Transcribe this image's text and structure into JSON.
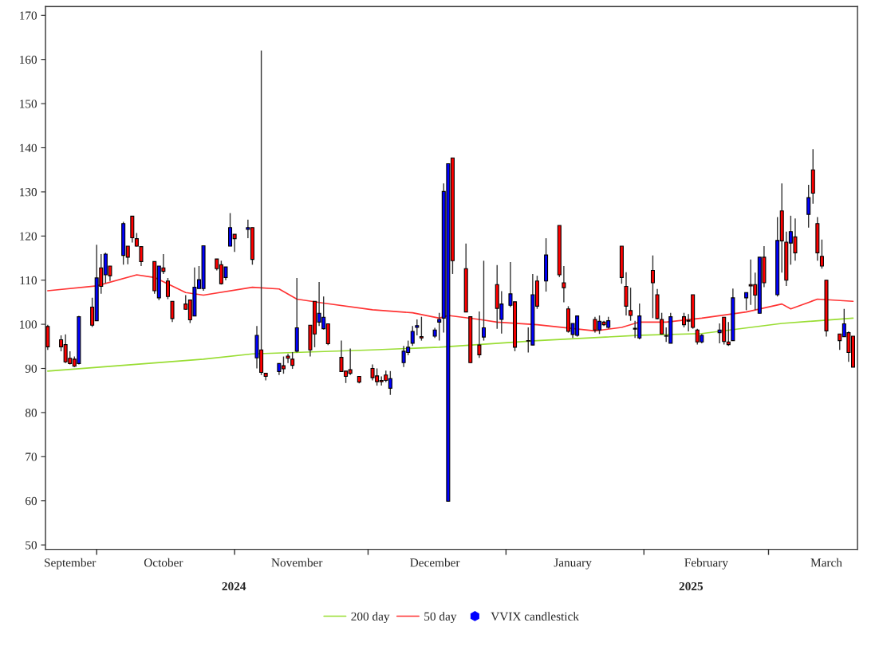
{
  "chart_data": {
    "type": "candlestick",
    "xlim": [
      "2024-09-19T12:00",
      "2025-03-21"
    ],
    "xticks": [
      {
        "value": "2024-09-25",
        "label": "September"
      },
      {
        "value": "2024-10-01",
        "label": null
      },
      {
        "value": "2024-10-16",
        "label": "October"
      },
      {
        "value": "2024-11-01",
        "label": null
      },
      {
        "value": "2024-11-15",
        "label": "November"
      },
      {
        "value": "2024-12-01",
        "label": null
      },
      {
        "value": "2024-12-16",
        "label": "December"
      },
      {
        "value": "2025-01-01",
        "label": null
      },
      {
        "value": "2025-01-16",
        "label": "January"
      },
      {
        "value": "2025-02-01",
        "label": null
      },
      {
        "value": "2025-02-15",
        "label": "February"
      },
      {
        "value": "2025-03-01",
        "label": null
      },
      {
        "value": "2025-03-14",
        "label": "March"
      }
    ],
    "ylim": [
      49,
      172
    ],
    "yticks": [
      50,
      60,
      70,
      80,
      90,
      100,
      110,
      120,
      130,
      140,
      150,
      160,
      170
    ],
    "grid": false,
    "legend": "bottom",
    "annotations": [
      "2024",
      "2025"
    ],
    "series": [
      {
        "name": "200 day",
        "type": "line",
        "color": "#99dd33",
        "x": [
          "2024-09-20",
          "2024-10-25",
          "2024-11-05",
          "2024-12-02",
          "2024-12-17",
          "2025-01-08",
          "2025-01-31",
          "2025-02-14",
          "2025-03-04",
          "2025-03-20"
        ],
        "values": [
          89.4,
          92.1,
          93.3,
          94.2,
          94.8,
          96.3,
          97.5,
          97.9,
          100.2,
          101.4
        ]
      },
      {
        "name": "50 day",
        "type": "line",
        "color": "#ff3333",
        "x": [
          "2024-09-20",
          "2024-10-01",
          "2024-10-10",
          "2024-10-14",
          "2024-10-21",
          "2024-10-25",
          "2024-11-05",
          "2024-11-11",
          "2024-11-15",
          "2024-11-21",
          "2024-12-02",
          "2024-12-11",
          "2024-12-17",
          "2024-12-19",
          "2024-12-26",
          "2024-12-30",
          "2025-01-08",
          "2025-01-21",
          "2025-01-27",
          "2025-01-31",
          "2025-02-06",
          "2025-02-14",
          "2025-02-24",
          "2025-03-04",
          "2025-03-06",
          "2025-03-12",
          "2025-03-20"
        ],
        "values": [
          107.6,
          108.7,
          111.2,
          110.6,
          107.2,
          106.6,
          108.4,
          108.0,
          105.7,
          104.8,
          103.3,
          102.6,
          101.4,
          102.0,
          101.1,
          100.5,
          99.9,
          98.5,
          99.3,
          100.5,
          100.5,
          101.4,
          102.8,
          104.6,
          103.5,
          105.7,
          105.2
        ]
      },
      {
        "name": "VVIX candlestick",
        "color": "#0000ff",
        "x": [
          "2024-09-20",
          "2024-09-23",
          "2024-09-24",
          "2024-09-25",
          "2024-09-26",
          "2024-09-27",
          "2024-09-30",
          "2024-10-01",
          "2024-10-02",
          "2024-10-03",
          "2024-10-04",
          "2024-10-07",
          "2024-10-08",
          "2024-10-09",
          "2024-10-10",
          "2024-10-11",
          "2024-10-14",
          "2024-10-15",
          "2024-10-16",
          "2024-10-17",
          "2024-10-18",
          "2024-10-21",
          "2024-10-22",
          "2024-10-23",
          "2024-10-24",
          "2024-10-25",
          "2024-10-28",
          "2024-10-29",
          "2024-10-30",
          "2024-10-31",
          "2024-11-01",
          "2024-11-04",
          "2024-11-05",
          "2024-11-06",
          "2024-11-07",
          "2024-11-08",
          "2024-11-11",
          "2024-11-12",
          "2024-11-13",
          "2024-11-14",
          "2024-11-15",
          "2024-11-18",
          "2024-11-19",
          "2024-11-20",
          "2024-11-21",
          "2024-11-22",
          "2024-11-25",
          "2024-11-26",
          "2024-11-27",
          "2024-11-29",
          "2024-12-02",
          "2024-12-03",
          "2024-12-04",
          "2024-12-05",
          "2024-12-06",
          "2024-12-09",
          "2024-12-10",
          "2024-12-11",
          "2024-12-12",
          "2024-12-13",
          "2024-12-16",
          "2024-12-17",
          "2024-12-18",
          "2024-12-19",
          "2024-12-20",
          "2024-12-23",
          "2024-12-24",
          "2024-12-26",
          "2024-12-27",
          "2024-12-30",
          "2024-12-31",
          "2025-01-02",
          "2025-01-03",
          "2025-01-06",
          "2025-01-07",
          "2025-01-08",
          "2025-01-10",
          "2025-01-13",
          "2025-01-14",
          "2025-01-15",
          "2025-01-16",
          "2025-01-17",
          "2025-01-21",
          "2025-01-22",
          "2025-01-23",
          "2025-01-24",
          "2025-01-27",
          "2025-01-28",
          "2025-01-29",
          "2025-01-30",
          "2025-01-31",
          "2025-02-03",
          "2025-02-04",
          "2025-02-05",
          "2025-02-06",
          "2025-02-07",
          "2025-02-10",
          "2025-02-11",
          "2025-02-12",
          "2025-02-13",
          "2025-02-14",
          "2025-02-18",
          "2025-02-19",
          "2025-02-20",
          "2025-02-21",
          "2025-02-24",
          "2025-02-25",
          "2025-02-26",
          "2025-02-27",
          "2025-02-28",
          "2025-03-03",
          "2025-03-04",
          "2025-03-05",
          "2025-03-06",
          "2025-03-07",
          "2025-03-10",
          "2025-03-11",
          "2025-03-12",
          "2025-03-13",
          "2025-03-14",
          "2025-03-17",
          "2025-03-18",
          "2025-03-19",
          "2025-03-20"
        ],
        "ohlc": [
          [
            99.5,
            99.9,
            94.2,
            94.9
          ],
          [
            96.5,
            97.5,
            93.9,
            94.9
          ],
          [
            95.4,
            97.7,
            91.2,
            91.5
          ],
          [
            92.3,
            93.9,
            90.9,
            91.1
          ],
          [
            92.1,
            92.7,
            90.3,
            90.5
          ],
          [
            91.1,
            101.9,
            90.9,
            101.7
          ],
          [
            103.9,
            106,
            99.4,
            99.8
          ],
          [
            100.8,
            118,
            100.8,
            110.5
          ],
          [
            112.8,
            115.9,
            106.9,
            108.6
          ],
          [
            111.2,
            116.2,
            109.3,
            115.9
          ],
          [
            113.2,
            113.2,
            109.8,
            111
          ],
          [
            115.6,
            123.2,
            113.5,
            122.8
          ],
          [
            117.7,
            117.7,
            113.6,
            115.2
          ],
          [
            124.5,
            124.5,
            118.5,
            119.6
          ],
          [
            119.4,
            120.7,
            117.6,
            117.7
          ],
          [
            117.6,
            117.6,
            113.2,
            114.2
          ],
          [
            114.2,
            114.2,
            106.9,
            107.6
          ],
          [
            106,
            113.2,
            105.5,
            113.2
          ],
          [
            112.8,
            115.9,
            111.4,
            112
          ],
          [
            109.8,
            110.5,
            105.7,
            106.3
          ],
          [
            105.2,
            105.2,
            100.5,
            101.3
          ],
          [
            104.6,
            106.6,
            103.3,
            103.4
          ],
          [
            105.5,
            105.5,
            100.3,
            101
          ],
          [
            101.9,
            112.9,
            101.9,
            108.4
          ],
          [
            108.1,
            113.2,
            108.1,
            110.1
          ],
          [
            108.1,
            117.8,
            107.6,
            117.8
          ],
          [
            114.8,
            114.8,
            112.2,
            112.6
          ],
          [
            113.5,
            114.4,
            109,
            109.2
          ],
          [
            110.6,
            113,
            110,
            113
          ],
          [
            117.7,
            125.2,
            117.7,
            121.9
          ],
          [
            120.4,
            120.4,
            116.4,
            119.4
          ],
          [
            121.5,
            123.7,
            119.5,
            121.9
          ],
          [
            121.9,
            121.9,
            113.5,
            114.7
          ],
          [
            92.4,
            99.6,
            90,
            97.5
          ],
          [
            94.2,
            162,
            88.5,
            89.1
          ],
          [
            88.9,
            88.9,
            87.3,
            88.2
          ],
          [
            89.3,
            91.1,
            88.5,
            91.1
          ],
          [
            90.6,
            92.7,
            88.8,
            89.9
          ],
          [
            92.8,
            93.3,
            91.2,
            92.3
          ],
          [
            92.1,
            93.7,
            89.9,
            90.7
          ],
          [
            93.9,
            110.5,
            93.6,
            99.2
          ],
          [
            99.8,
            99.8,
            92.7,
            94.2
          ],
          [
            105.2,
            105.2,
            94.8,
            97.8
          ],
          [
            100.5,
            109.6,
            99.6,
            102.5
          ],
          [
            99,
            106.3,
            98.8,
            101.6
          ],
          [
            100.1,
            100.1,
            95.3,
            95.6
          ],
          [
            92.5,
            96.3,
            89.3,
            89.3
          ],
          [
            89.4,
            89.4,
            86.7,
            88.2
          ],
          [
            89.7,
            94.5,
            88.5,
            88.9
          ],
          [
            88.2,
            88.2,
            86.6,
            86.9
          ],
          [
            90,
            90.9,
            87.3,
            87.9
          ],
          [
            88.3,
            90,
            86.1,
            87
          ],
          [
            87.3,
            88.2,
            86.1,
            87
          ],
          [
            88.5,
            89.5,
            86.9,
            87.3
          ],
          [
            85.5,
            89.4,
            84,
            87.7
          ],
          [
            91.3,
            95.1,
            90.3,
            93.9
          ],
          [
            93.6,
            96.3,
            93,
            94.8
          ],
          [
            95.7,
            99.6,
            95.1,
            98.4
          ],
          [
            99.3,
            101.1,
            97.5,
            99.7
          ],
          [
            97.2,
            101.7,
            96.3,
            96.9
          ],
          [
            97.3,
            99.2,
            96.9,
            98.7
          ],
          [
            100.5,
            102.6,
            96.3,
            101.1
          ],
          [
            101.4,
            131.9,
            98.1,
            130.1
          ],
          [
            59.9,
            136.4,
            59.9,
            136.4
          ],
          [
            137.7,
            137.7,
            111.4,
            114.4
          ],
          [
            112.6,
            118.3,
            102.8,
            102.8
          ],
          [
            101.7,
            101.7,
            91.2,
            91.3
          ],
          [
            95.3,
            102.9,
            92.4,
            93.1
          ],
          [
            97.1,
            114.4,
            96.3,
            99.2
          ],
          [
            109,
            113.4,
            99,
            103.6
          ],
          [
            101.1,
            107.5,
            97.9,
            104.6
          ],
          [
            104.3,
            114.1,
            103.9,
            106.9
          ],
          [
            105.1,
            105.1,
            93.9,
            94.8
          ],
          [
            96.3,
            99.3,
            93.6,
            96.2
          ],
          [
            95.3,
            111.4,
            95.3,
            106.7
          ],
          [
            109.8,
            111,
            103.5,
            104.1
          ],
          [
            109.8,
            119.5,
            107.4,
            115.7
          ],
          [
            122.4,
            122.4,
            110.7,
            111.2
          ],
          [
            109.4,
            113.2,
            105,
            108.3
          ],
          [
            103.5,
            104.1,
            98.1,
            98.4
          ],
          [
            97.7,
            100.2,
            96.9,
            100.2
          ],
          [
            97.5,
            102,
            97.2,
            101.9
          ],
          [
            101.1,
            101.7,
            98.1,
            98.7
          ],
          [
            98.7,
            102,
            97.8,
            100.7
          ],
          [
            100.5,
            100.8,
            99.6,
            99.9
          ],
          [
            99.3,
            101.7,
            99,
            100.8
          ],
          [
            117.7,
            117.7,
            109.2,
            110.6
          ],
          [
            108.6,
            111.8,
            102,
            104.1
          ],
          [
            103.1,
            108.3,
            100.8,
            102
          ],
          [
            99.1,
            100.8,
            96.9,
            98.9
          ],
          [
            96.9,
            104.7,
            96.6,
            101.9
          ],
          [
            112.2,
            115.6,
            101.4,
            109.4
          ],
          [
            106.7,
            108,
            101.1,
            101.3
          ],
          [
            101.1,
            102.6,
            97.8,
            97.8
          ],
          [
            97.4,
            99.3,
            96,
            97.3
          ],
          [
            95.7,
            102.6,
            95.7,
            101.7
          ],
          [
            101.7,
            102.6,
            99.3,
            99.9
          ],
          [
            100.9,
            102.3,
            98.4,
            100.7
          ],
          [
            106.7,
            106.7,
            99,
            99.3
          ],
          [
            98.7,
            99,
            95.4,
            96
          ],
          [
            96,
            97.8,
            95.7,
            97.5
          ],
          [
            98.1,
            100.2,
            95.7,
            98.7
          ],
          [
            101.6,
            101.6,
            95.4,
            96.1
          ],
          [
            96,
            100.5,
            95.1,
            95.4
          ],
          [
            96.3,
            108.1,
            96.3,
            106
          ],
          [
            106,
            107.2,
            103.2,
            107.2
          ],
          [
            109,
            114.7,
            104.4,
            108.7
          ],
          [
            109,
            111.7,
            103.2,
            106.6
          ],
          [
            102.5,
            115.2,
            102.5,
            115.2
          ],
          [
            115.2,
            117.7,
            108.4,
            109.4
          ],
          [
            106.7,
            124.3,
            106.3,
            119
          ],
          [
            125.7,
            131.9,
            111.7,
            118.9
          ],
          [
            118.6,
            121,
            108.7,
            110
          ],
          [
            118.4,
            124.6,
            113.5,
            121
          ],
          [
            119.8,
            124,
            114.4,
            116.2
          ],
          [
            124.9,
            131.6,
            121.9,
            128.7
          ],
          [
            135,
            139.7,
            127.3,
            129.7
          ],
          [
            122.8,
            124.3,
            114.4,
            116.2
          ],
          [
            115.4,
            119.2,
            112.6,
            113.2
          ],
          [
            110,
            110,
            97.2,
            98.5
          ],
          [
            97.8,
            97.8,
            94.2,
            96.3
          ],
          [
            97.2,
            103.5,
            97.2,
            100.1
          ],
          [
            98.1,
            98.4,
            91.5,
            93.6
          ],
          [
            97.3,
            97.3,
            90.3,
            90.3
          ]
        ],
        "colors": [
          "#ff0000",
          "#ff0000",
          "#ff0000",
          "#ff0000",
          "#ff0000",
          "#0000ff",
          "#ff0000",
          "#0000ff",
          "#ff0000",
          "#0000ff",
          "#ff0000",
          "#0000ff",
          "#ff0000",
          "#ff0000",
          "#ff0000",
          "#ff0000",
          "#ff0000",
          "#0000ff",
          "#ff0000",
          "#ff0000",
          "#ff0000",
          "#ff0000",
          "#ff0000",
          "#0000ff",
          "#0000ff",
          "#0000ff",
          "#ff0000",
          "#ff0000",
          "#0000ff",
          "#0000ff",
          "#ff0000",
          "#0000ff",
          "#ff0000",
          "#0000ff",
          "#ff0000",
          "#ff0000",
          "#0000ff",
          "#ff0000",
          "#ff0000",
          "#ff0000",
          "#0000ff",
          "#ff0000",
          "#ff0000",
          "#0000ff",
          "#0000ff",
          "#ff0000",
          "#ff0000",
          "#ff0000",
          "#ff0000",
          "#ff0000",
          "#ff0000",
          "#ff0000",
          "#ff0000",
          "#ff0000",
          "#0000ff",
          "#0000ff",
          "#0000ff",
          "#0000ff",
          "#0000ff",
          "#ff0000",
          "#0000ff",
          "#0000ff",
          "#0000ff",
          "#0000ff",
          "#ff0000",
          "#ff0000",
          "#ff0000",
          "#ff0000",
          "#0000ff",
          "#ff0000",
          "#0000ff",
          "#0000ff",
          "#ff0000",
          "#ff0000",
          "#0000ff",
          "#ff0000",
          "#0000ff",
          "#ff0000",
          "#ff0000",
          "#ff0000",
          "#0000ff",
          "#0000ff",
          "#ff0000",
          "#0000ff",
          "#ff0000",
          "#0000ff",
          "#ff0000",
          "#ff0000",
          "#ff0000",
          "#ff0000",
          "#0000ff",
          "#ff0000",
          "#ff0000",
          "#ff0000",
          "#ff0000",
          "#0000ff",
          "#ff0000",
          "#ff0000",
          "#ff0000",
          "#ff0000",
          "#0000ff",
          "#0000ff",
          "#ff0000",
          "#ff0000",
          "#0000ff",
          "#0000ff",
          "#ff0000",
          "#ff0000",
          "#0000ff",
          "#ff0000",
          "#0000ff",
          "#ff0000",
          "#ff0000",
          "#0000ff",
          "#ff0000",
          "#0000ff",
          "#ff0000",
          "#ff0000",
          "#ff0000",
          "#ff0000",
          "#ff0000",
          "#0000ff",
          "#ff0000",
          "#ff0000"
        ]
      }
    ]
  }
}
